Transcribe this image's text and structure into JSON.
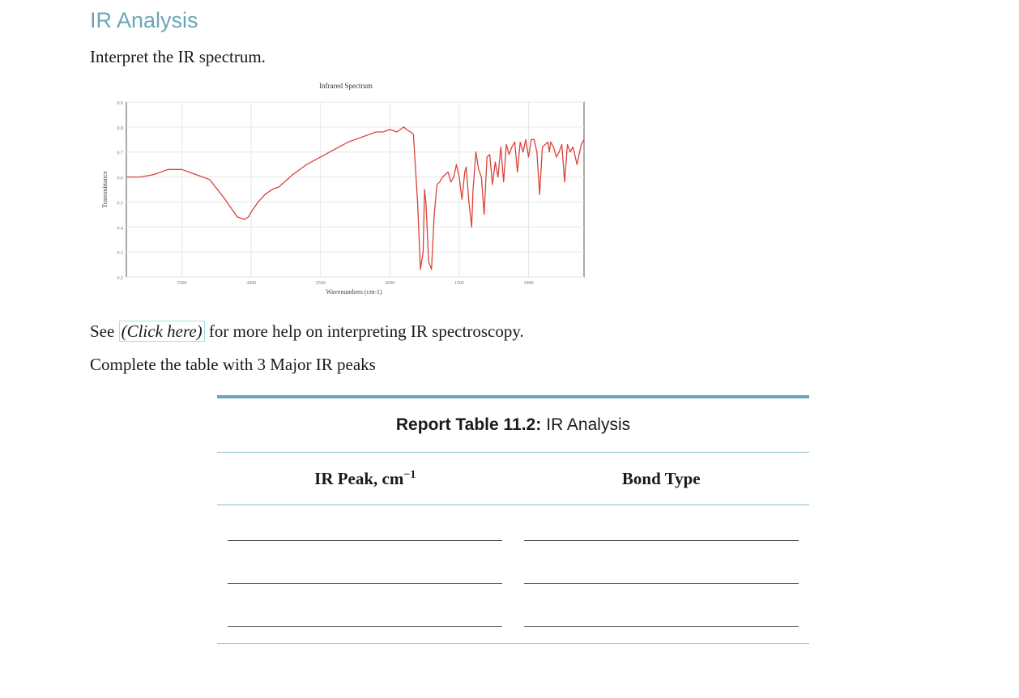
{
  "page": {
    "title": "IR Analysis",
    "instruction": "Interpret the IR spectrum.",
    "see_prefix": "See",
    "see_link": "(Click here)",
    "see_suffix": "for more help on interpreting IR spectroscopy.",
    "complete_text": "Complete the table with 3 Major IR peaks"
  },
  "table": {
    "caption_bold": "Report Table 11.2:",
    "caption_rest": "IR Analysis",
    "col1": "IR Peak, cm",
    "col1_sup": "−1",
    "col2": "Bond Type",
    "rows": 3
  },
  "colors": {
    "accent": "#6aa6b8",
    "spectrum": "#d9433a"
  },
  "chart_data": {
    "type": "line",
    "title": "Infrared Spectrum",
    "xlabel": "Wavenumbers (cm-1)",
    "ylabel": "Transmittance",
    "xlim": [
      3900,
      600
    ],
    "ylim": [
      0.2,
      0.9
    ],
    "xticks": [
      3500,
      3000,
      2500,
      2000,
      1500,
      1000
    ],
    "yticks": [
      0.2,
      0.3,
      0.4,
      0.5,
      0.6,
      0.7,
      0.8,
      0.9
    ],
    "grid": true,
    "series": [
      {
        "x": [
          3900,
          3800,
          3700,
          3600,
          3500,
          3400,
          3300,
          3200,
          3100,
          3050,
          3020,
          3000,
          2950,
          2900,
          2850,
          2800,
          2700,
          2600,
          2500,
          2400,
          2300,
          2200,
          2100,
          2050,
          2000,
          1950,
          1900,
          1880,
          1850,
          1830,
          1800,
          1780,
          1760,
          1750,
          1740,
          1720,
          1700,
          1680,
          1660,
          1640,
          1620,
          1600,
          1580,
          1560,
          1540,
          1520,
          1500,
          1480,
          1460,
          1450,
          1430,
          1410,
          1400,
          1380,
          1360,
          1340,
          1320,
          1300,
          1280,
          1260,
          1240,
          1220,
          1200,
          1180,
          1160,
          1140,
          1120,
          1100,
          1080,
          1060,
          1040,
          1020,
          1000,
          980,
          960,
          940,
          920,
          900,
          880,
          860,
          850,
          840,
          820,
          800,
          780,
          760,
          740,
          720,
          700,
          680,
          650,
          620,
          600
        ],
        "y": [
          0.6,
          0.6,
          0.61,
          0.63,
          0.63,
          0.61,
          0.59,
          0.52,
          0.44,
          0.43,
          0.44,
          0.46,
          0.5,
          0.53,
          0.55,
          0.56,
          0.61,
          0.65,
          0.68,
          0.71,
          0.74,
          0.76,
          0.78,
          0.78,
          0.79,
          0.78,
          0.8,
          0.79,
          0.78,
          0.77,
          0.5,
          0.23,
          0.3,
          0.55,
          0.5,
          0.26,
          0.23,
          0.45,
          0.57,
          0.58,
          0.6,
          0.61,
          0.62,
          0.58,
          0.6,
          0.65,
          0.6,
          0.51,
          0.62,
          0.64,
          0.5,
          0.4,
          0.55,
          0.7,
          0.63,
          0.6,
          0.45,
          0.68,
          0.69,
          0.57,
          0.66,
          0.6,
          0.72,
          0.58,
          0.73,
          0.69,
          0.72,
          0.74,
          0.62,
          0.74,
          0.7,
          0.75,
          0.68,
          0.75,
          0.75,
          0.7,
          0.53,
          0.72,
          0.73,
          0.74,
          0.7,
          0.74,
          0.72,
          0.68,
          0.7,
          0.73,
          0.58,
          0.73,
          0.7,
          0.72,
          0.65,
          0.73,
          0.75
        ]
      }
    ]
  }
}
